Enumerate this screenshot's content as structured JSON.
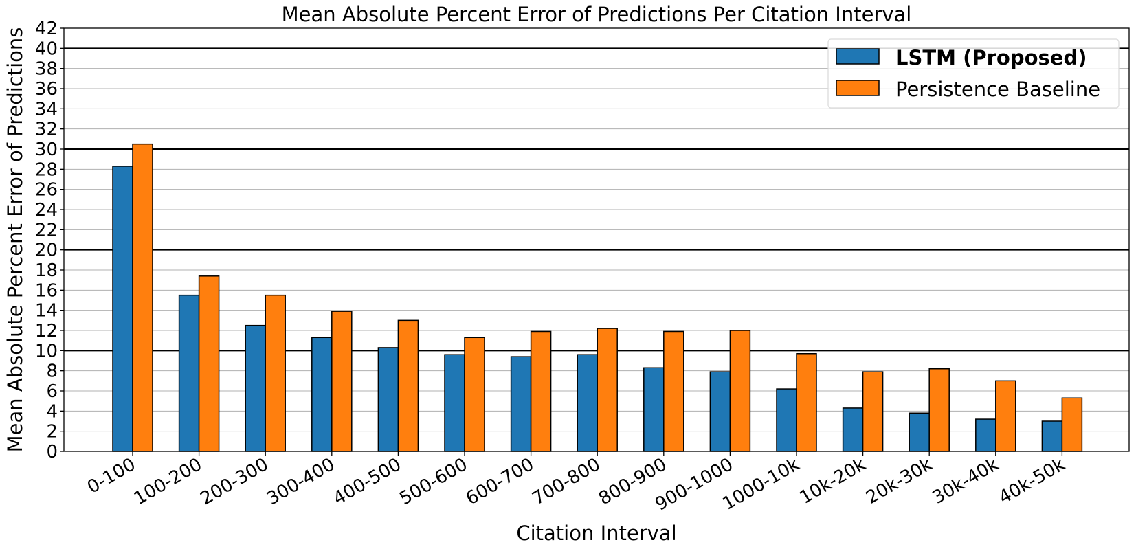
{
  "chart_data": {
    "type": "bar",
    "title": "Mean Absolute Percent Error of Predictions Per Citation Interval",
    "xlabel": "Citation Interval",
    "ylabel": "Mean Absolute Percent Error of Predictions",
    "ylim": [
      0,
      42
    ],
    "yticks": [
      0,
      2,
      4,
      6,
      8,
      10,
      12,
      14,
      16,
      18,
      20,
      22,
      24,
      26,
      28,
      30,
      32,
      34,
      36,
      38,
      40,
      42
    ],
    "major_gridlines": [
      10,
      20,
      30,
      40
    ],
    "grid": true,
    "legend_position": "top-right",
    "categories": [
      "0-100",
      "100-200",
      "200-300",
      "300-400",
      "400-500",
      "500-600",
      "600-700",
      "700-800",
      "800-900",
      "900-1000",
      "1000-10k",
      "10k-20k",
      "20k-30k",
      "30k-40k",
      "40k-50k"
    ],
    "series": [
      {
        "name": "LSTM (Proposed)",
        "color": "#1f77b4",
        "bold_label": true,
        "values": [
          28.3,
          15.5,
          12.5,
          11.3,
          10.3,
          9.6,
          9.4,
          9.6,
          8.3,
          7.9,
          6.2,
          4.3,
          3.8,
          3.2,
          3.0
        ]
      },
      {
        "name": "Persistence Baseline",
        "color": "#ff7f0e",
        "bold_label": false,
        "values": [
          30.5,
          17.4,
          15.5,
          13.9,
          13.0,
          11.3,
          11.9,
          12.2,
          11.9,
          12.0,
          9.7,
          7.9,
          8.2,
          7.0,
          5.3
        ]
      }
    ]
  }
}
